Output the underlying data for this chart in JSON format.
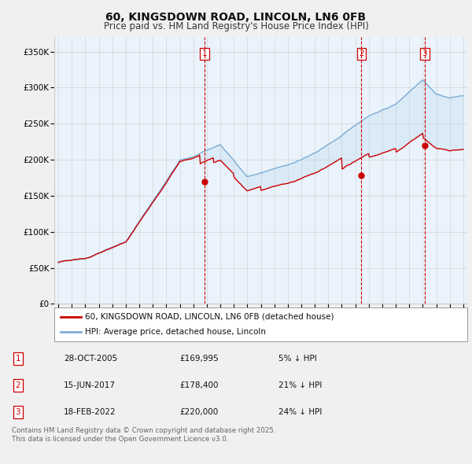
{
  "title": "60, KINGSDOWN ROAD, LINCOLN, LN6 0FB",
  "subtitle": "Price paid vs. HM Land Registry's House Price Index (HPI)",
  "yticks": [
    0,
    50000,
    100000,
    150000,
    200000,
    250000,
    300000,
    350000
  ],
  "ytick_labels": [
    "£0",
    "£50K",
    "£100K",
    "£150K",
    "£200K",
    "£250K",
    "£300K",
    "£350K"
  ],
  "xmin_year": 1995,
  "xmax_year": 2025,
  "xticks": [
    1995,
    1996,
    1997,
    1998,
    1999,
    2000,
    2001,
    2002,
    2003,
    2004,
    2005,
    2006,
    2007,
    2008,
    2009,
    2010,
    2011,
    2012,
    2013,
    2014,
    2015,
    2016,
    2017,
    2018,
    2019,
    2020,
    2021,
    2022,
    2023,
    2024,
    2025
  ],
  "hpi_color": "#7eadd4",
  "price_color": "#cc0000",
  "vline_color": "#cc0000",
  "fill_color": "#d0e4f5",
  "sale_dates": [
    2005.83,
    2017.46,
    2022.13
  ],
  "sale_prices": [
    169995,
    178400,
    220000
  ],
  "sale_labels": [
    "1",
    "2",
    "3"
  ],
  "legend_label_price": "60, KINGSDOWN ROAD, LINCOLN, LN6 0FB (detached house)",
  "legend_label_hpi": "HPI: Average price, detached house, Lincoln",
  "table_data": [
    [
      "1",
      "28-OCT-2005",
      "£169,995",
      "5% ↓ HPI"
    ],
    [
      "2",
      "15-JUN-2017",
      "£178,400",
      "21% ↓ HPI"
    ],
    [
      "3",
      "18-FEB-2022",
      "£220,000",
      "24% ↓ HPI"
    ]
  ],
  "footnote": "Contains HM Land Registry data © Crown copyright and database right 2025.\nThis data is licensed under the Open Government Licence v3.0.",
  "bg_color": "#f0f0f0",
  "plot_bg_color": "#eaf3fb",
  "grid_color": "#cccccc"
}
